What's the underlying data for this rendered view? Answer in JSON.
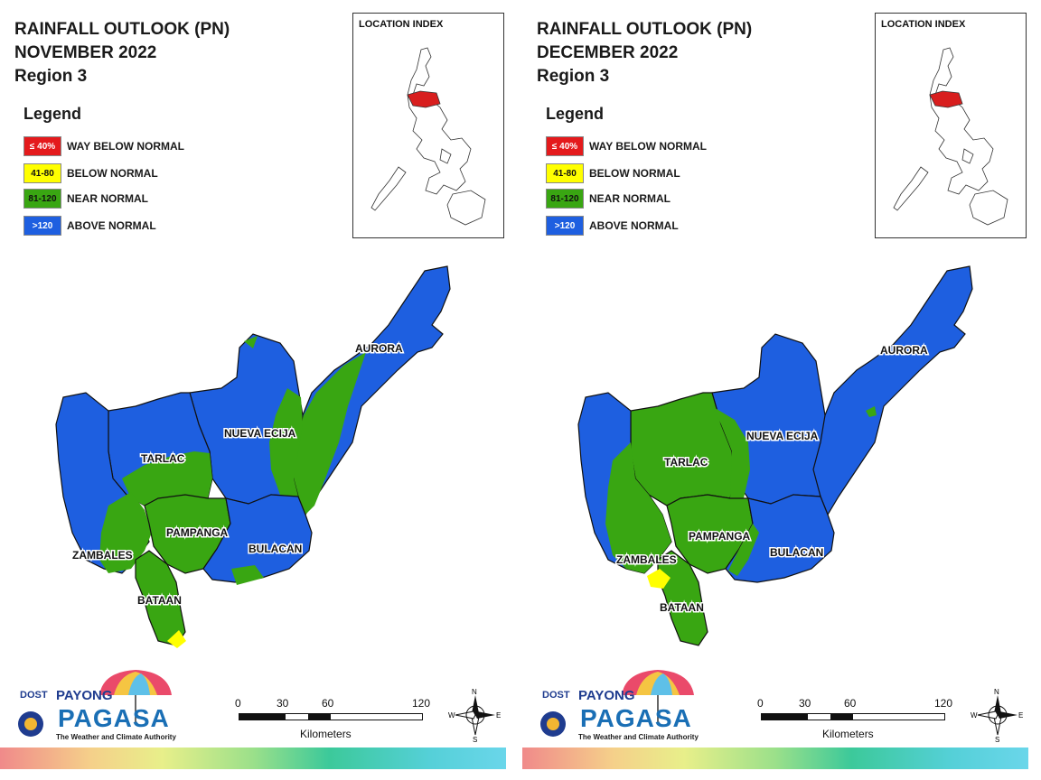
{
  "panels": [
    {
      "title_line1": "RAINFALL OUTLOOK (PN)",
      "title_line2": "NOVEMBER 2022",
      "title_line3": "Region 3",
      "location_index_title": "LOCATION INDEX",
      "provinces": {
        "aurora": "AURORA",
        "nueva_ecija": "NUEVA ECIJA",
        "tarlac": "TARLAC",
        "pampanga": "PAMPANGA",
        "zambales": "ZAMBALES",
        "bulacan": "BULACAN",
        "bataan": "BATAAN"
      }
    },
    {
      "title_line1": "RAINFALL OUTLOOK (PN)",
      "title_line2": "DECEMBER 2022",
      "title_line3": "Region 3",
      "location_index_title": "LOCATION INDEX",
      "provinces": {
        "aurora": "AURORA",
        "nueva_ecija": "NUEVA ECIJA",
        "tarlac": "TARLAC",
        "pampanga": "PAMPANGA",
        "zambales": "ZAMBALES",
        "bulacan": "BULACAN",
        "bataan": "BATAAN"
      }
    }
  ],
  "legend": {
    "title": "Legend",
    "items": [
      {
        "range": "≤ 40%",
        "label": "WAY BELOW NORMAL",
        "color": "#e41a1c",
        "text_color": "#ffffff"
      },
      {
        "range": "41-80",
        "label": "BELOW NORMAL",
        "color": "#ffff00",
        "text_color": "#111111"
      },
      {
        "range": "81-120",
        "label": "NEAR NORMAL",
        "color": "#39a612",
        "text_color": "#111111"
      },
      {
        "range": ">120",
        "label": "ABOVE NORMAL",
        "color": "#1e5fe0",
        "text_color": "#ffffff"
      }
    ]
  },
  "scale": {
    "ticks": [
      "0",
      "30",
      "60",
      "120"
    ],
    "unit": "Kilometers"
  },
  "compass": {
    "n": "N",
    "s": "S",
    "e": "E",
    "w": "W"
  },
  "logo": {
    "dost": "DOST",
    "payong": "PAYONG",
    "pagasa": "PAGASA",
    "tagline": "The Weather and Climate Authority"
  },
  "colors": {
    "above_normal": "#1e5fe0",
    "near_normal": "#39a612",
    "below_normal": "#ffff00",
    "way_below": "#e41a1c"
  }
}
